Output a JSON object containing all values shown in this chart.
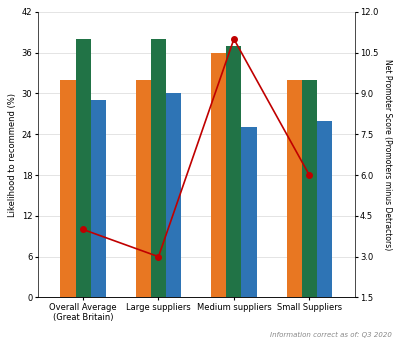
{
  "categories": [
    "Overall Average\n(Great Britain)",
    "Large suppliers",
    "Medium suppliers",
    "Small Suppliers"
  ],
  "bar_data": {
    "orange": [
      32,
      32,
      36,
      32
    ],
    "green": [
      38,
      38,
      37,
      32
    ],
    "blue": [
      29,
      30,
      25,
      26
    ]
  },
  "bar_colors": [
    "#E87722",
    "#217346",
    "#2E74B5"
  ],
  "line_values": [
    4.0,
    3.0,
    11.0,
    6.0
  ],
  "line_color": "#C00000",
  "left_ylim": [
    0,
    42
  ],
  "left_yticks": [
    0,
    6,
    12,
    18,
    24,
    30,
    36,
    42
  ],
  "right_ylim": [
    1.5,
    12
  ],
  "right_yticks": [
    1.5,
    3,
    4.5,
    6,
    7.5,
    9,
    10.5,
    12
  ],
  "ylabel_left": "Likelihood to recommend (%)",
  "ylabel_right": "Net Promoter Score (Promoters minus Detractors)",
  "footnote": "Information correct as of: Q3 2020",
  "background_color": "#FFFFFF",
  "gridcolor": "#D9D9D9"
}
